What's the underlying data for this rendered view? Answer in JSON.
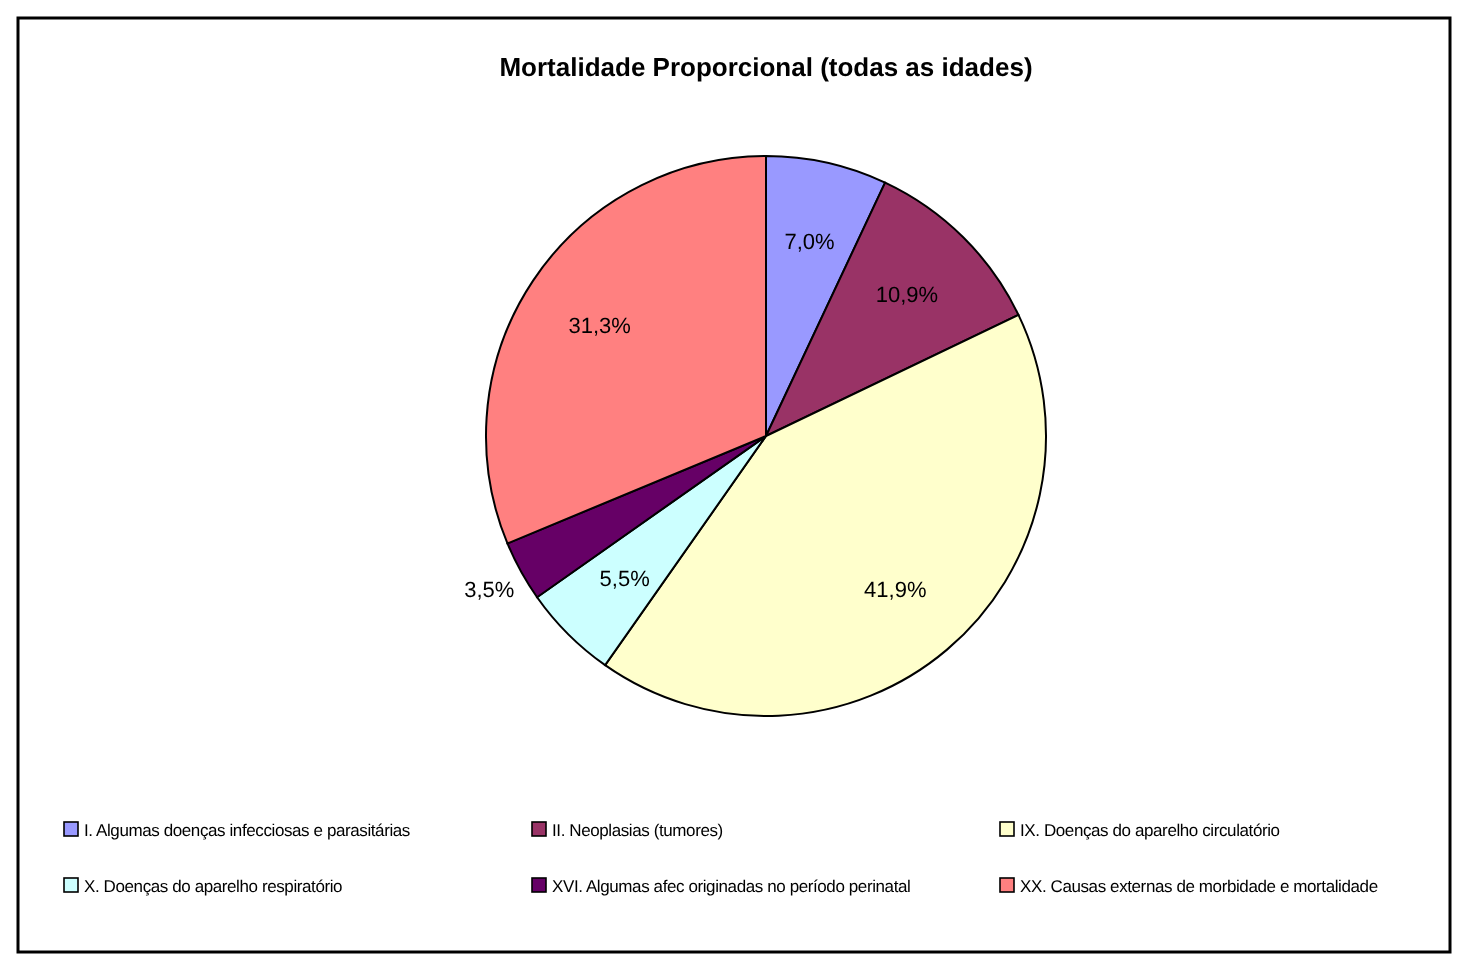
{
  "chart_data": {
    "type": "pie",
    "title": "Mortalidade Proporcional (todas as idades)",
    "categories": [
      "I.  Algumas doenças infecciosas e parasitárias",
      "II.  Neoplasias (tumores)",
      "IX.  Doenças do aparelho circulatório",
      "X.  Doenças do aparelho respiratório",
      "XVI.  Algumas afec originadas no período perinatal",
      "XX.  Causas externas de morbidade e mortalidade"
    ],
    "values": [
      7.0,
      10.9,
      41.9,
      5.5,
      3.5,
      31.3
    ],
    "value_labels": [
      "7,0%",
      "10,9%",
      "41,9%",
      "5,5%",
      "3,5%",
      "31,3%"
    ],
    "colors": [
      "#9999ff",
      "#993366",
      "#ffffcc",
      "#ccffff",
      "#660066",
      "#ff8080"
    ],
    "legend": "bottom"
  }
}
